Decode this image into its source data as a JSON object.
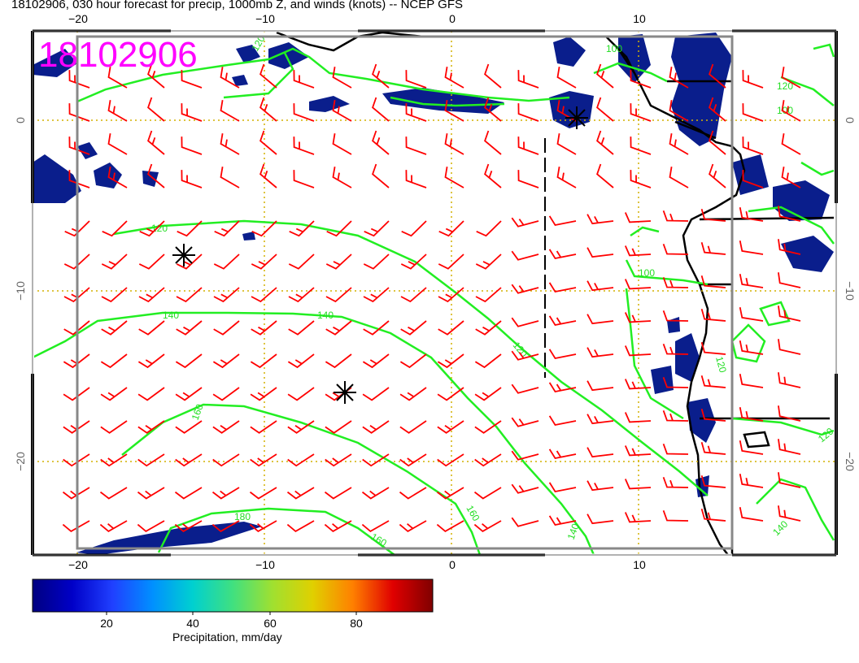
{
  "title": "18102906, 030 hour forecast for precip, 1000mb Z, and winds (knots) -- NCEP GFS",
  "stamp": "18102906",
  "axes": {
    "lon_top": [
      "−20",
      "−10",
      "0",
      "10"
    ],
    "lon_bottom": [
      "−20",
      "−10",
      "0",
      "10"
    ],
    "lat_left": [
      "0",
      "−10",
      "−20"
    ],
    "lat_right": [
      "0",
      "−10",
      "−20"
    ]
  },
  "contour_labels": [
    "120",
    "100",
    "120",
    "100",
    "140",
    "140",
    "120",
    "120",
    "160",
    "180",
    "160",
    "140",
    "120",
    "140",
    "100",
    "160",
    "120"
  ],
  "colorbar": {
    "title": "Precipitation, mm/day",
    "ticks": [
      "20",
      "40",
      "60",
      "80"
    ],
    "colors": [
      "#000080",
      "#0000c8",
      "#2040ff",
      "#0090ff",
      "#00d0d0",
      "#40e080",
      "#a0e030",
      "#e0d000",
      "#ff8000",
      "#e00000",
      "#800000"
    ]
  },
  "colors": {
    "wind_barb": "#ff0000",
    "contour": "#22dd22",
    "grid": "#d4b000",
    "precip": "#0a1e8c",
    "coast": "#000000"
  },
  "markers": [
    "asterisk",
    "asterisk",
    "asterisk"
  ]
}
